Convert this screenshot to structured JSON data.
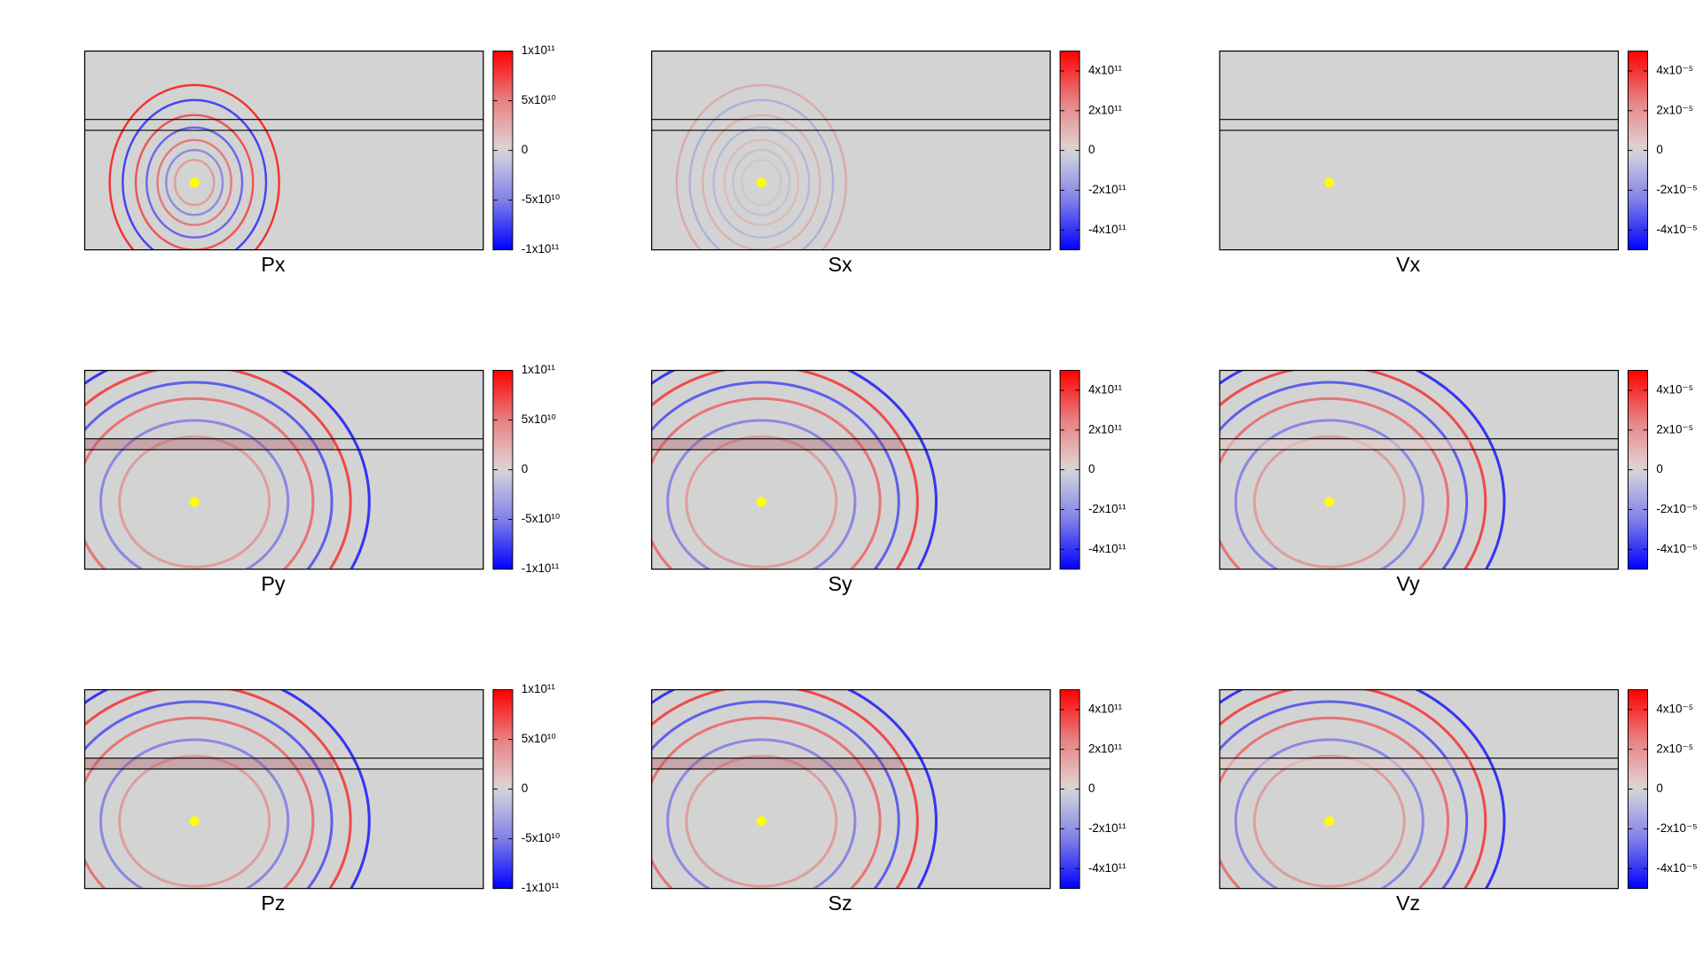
{
  "chart_data": [
    {
      "type": "heatmap",
      "title": "Px",
      "zlim": [
        -100000000000,
        100000000000
      ],
      "zticks": [
        {
          "value": 100000000000,
          "label": "1x10¹¹"
        },
        {
          "value": 50000000000,
          "label": "5x10¹⁰"
        },
        0,
        {
          "value": -50000000000,
          "label": "-5x10¹⁰"
        },
        {
          "value": -100000000000,
          "label": "-1x10¹¹"
        }
      ]
    },
    {
      "type": "heatmap",
      "title": "Sx",
      "zlim": [
        -500000000000,
        500000000000
      ],
      "zticks": [
        {
          "value": 400000000000,
          "label": "4x10¹¹"
        },
        {
          "value": 200000000000,
          "label": "2x10¹¹"
        },
        0,
        {
          "value": -200000000000,
          "label": "-2x10¹¹"
        },
        {
          "value": -400000000000,
          "label": "-4x10¹¹"
        }
      ]
    },
    {
      "type": "heatmap",
      "title": "Vx",
      "zlim": [
        -5e-05,
        5e-05
      ],
      "zticks": [
        {
          "value": 4e-05,
          "label": "4x10⁻⁵"
        },
        {
          "value": 2e-05,
          "label": "2x10⁻⁵"
        },
        0,
        {
          "value": -2e-05,
          "label": "-2x10⁻⁵"
        },
        {
          "value": -4e-05,
          "label": "-4x10⁻⁵"
        }
      ]
    },
    {
      "type": "heatmap",
      "title": "Py",
      "zlim": [
        -100000000000,
        100000000000
      ],
      "zticks": [
        {
          "value": 100000000000,
          "label": "1x10¹¹"
        },
        {
          "value": 50000000000,
          "label": "5x10¹⁰"
        },
        0,
        {
          "value": -50000000000,
          "label": "-5x10¹⁰"
        },
        {
          "value": -100000000000,
          "label": "-1x10¹¹"
        }
      ]
    },
    {
      "type": "heatmap",
      "title": "Sy",
      "zlim": [
        -500000000000,
        500000000000
      ],
      "zticks": [
        {
          "value": 400000000000,
          "label": "4x10¹¹"
        },
        {
          "value": 200000000000,
          "label": "2x10¹¹"
        },
        0,
        {
          "value": -200000000000,
          "label": "-2x10¹¹"
        },
        {
          "value": -400000000000,
          "label": "-4x10¹¹"
        }
      ]
    },
    {
      "type": "heatmap",
      "title": "Vy",
      "zlim": [
        -5e-05,
        5e-05
      ],
      "zticks": [
        {
          "value": 4e-05,
          "label": "4x10⁻⁵"
        },
        {
          "value": 2e-05,
          "label": "2x10⁻⁵"
        },
        0,
        {
          "value": -2e-05,
          "label": "-2x10⁻⁵"
        },
        {
          "value": -4e-05,
          "label": "-4x10⁻⁵"
        }
      ]
    },
    {
      "type": "heatmap",
      "title": "Pz",
      "zlim": [
        -100000000000,
        100000000000
      ],
      "zticks": [
        {
          "value": 100000000000,
          "label": "1x10¹¹"
        },
        {
          "value": 50000000000,
          "label": "5x10¹⁰"
        },
        0,
        {
          "value": -50000000000,
          "label": "-5x10¹⁰"
        },
        {
          "value": -100000000000,
          "label": "-1x10¹¹"
        }
      ]
    },
    {
      "type": "heatmap",
      "title": "Sz",
      "zlim": [
        -500000000000,
        500000000000
      ],
      "zticks": [
        {
          "value": 400000000000,
          "label": "4x10¹¹"
        },
        {
          "value": 200000000000,
          "label": "2x10¹¹"
        },
        0,
        {
          "value": -200000000000,
          "label": "-2x10¹¹"
        },
        {
          "value": -400000000000,
          "label": "-4x10¹¹"
        }
      ]
    },
    {
      "type": "heatmap",
      "title": "Vz",
      "zlim": [
        -5e-05,
        5e-05
      ],
      "zticks": [
        {
          "value": 4e-05,
          "label": "4x10⁻⁵"
        },
        {
          "value": 2e-05,
          "label": "2x10⁻⁵"
        },
        0,
        {
          "value": -2e-05,
          "label": "-2x10⁻⁵"
        },
        {
          "value": -4e-05,
          "label": "-4x10⁻⁵"
        }
      ]
    }
  ]
}
